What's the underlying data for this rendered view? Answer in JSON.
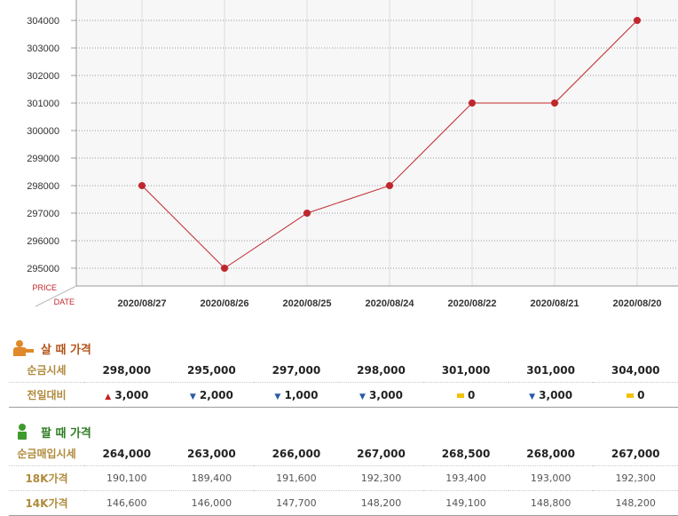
{
  "chart_data": {
    "type": "line",
    "x": [
      "2020/08/27",
      "2020/08/26",
      "2020/08/25",
      "2020/08/24",
      "2020/08/22",
      "2020/08/21",
      "2020/08/20"
    ],
    "y_ticks": [
      295000,
      296000,
      297000,
      298000,
      299000,
      300000,
      301000,
      302000,
      303000,
      304000
    ],
    "values": [
      298000,
      295000,
      297000,
      298000,
      301000,
      301000,
      304000
    ],
    "ylabel": "PRICE",
    "xlabel": "DATE",
    "grid": true,
    "line_color": "#c0272d"
  },
  "buy": {
    "title": "살 때 가격",
    "rows": [
      {
        "label": "순금시세",
        "cells": [
          "298,000",
          "295,000",
          "297,000",
          "298,000",
          "301,000",
          "301,000",
          "304,000"
        ]
      }
    ],
    "change": {
      "label": "전일대비",
      "cells": [
        {
          "dir": "up",
          "value": "3,000"
        },
        {
          "dir": "down",
          "value": "2,000"
        },
        {
          "dir": "down",
          "value": "1,000"
        },
        {
          "dir": "down",
          "value": "3,000"
        },
        {
          "dir": "flat",
          "value": "0"
        },
        {
          "dir": "down",
          "value": "3,000"
        },
        {
          "dir": "flat",
          "value": "0"
        }
      ]
    }
  },
  "sell": {
    "title": "팔 때 가격",
    "rows": [
      {
        "label": "순금매입시세",
        "bold": true,
        "cells": [
          "264,000",
          "263,000",
          "266,000",
          "267,000",
          "268,500",
          "268,000",
          "267,000"
        ]
      },
      {
        "label": "18K가격",
        "bold": false,
        "cells": [
          "190,100",
          "189,400",
          "191,600",
          "192,300",
          "193,400",
          "193,000",
          "192,300"
        ]
      },
      {
        "label": "14K가격",
        "bold": false,
        "cells": [
          "146,600",
          "146,000",
          "147,700",
          "148,200",
          "149,100",
          "148,800",
          "148,200"
        ]
      }
    ]
  }
}
